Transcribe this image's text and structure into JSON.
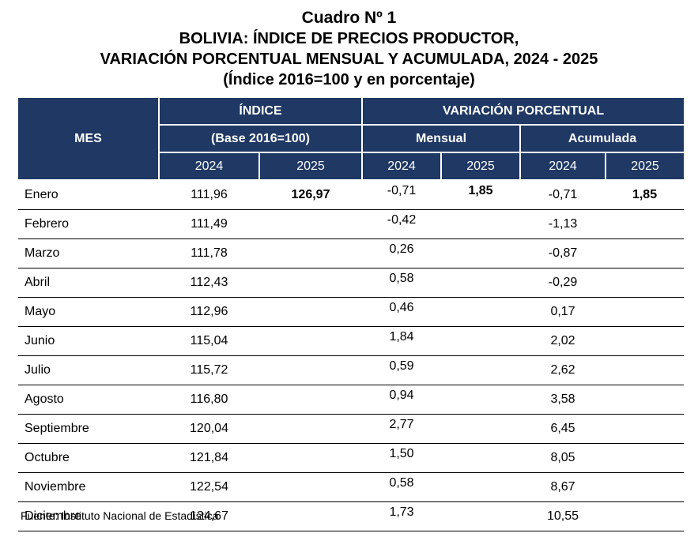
{
  "title": {
    "line1": "Cuadro Nº 1",
    "line2": "BOLIVIA: ÍNDICE DE PRECIOS PRODUCTOR,",
    "line3": "VARIACIÓN PORCENTUAL MENSUAL Y ACUMULADA, 2024 - 2025",
    "line4": "(Índice 2016=100 y en porcentaje)"
  },
  "header": {
    "mes": "MES",
    "indice": "ÍNDICE",
    "base": "(Base 2016=100)",
    "variacion": "VARIACIÓN PORCENTUAL",
    "mensual": "Mensual",
    "acumulada": "Acumulada",
    "y2024": "2024",
    "y2025": "2025"
  },
  "rows": [
    {
      "mes": "Enero",
      "idx2024": "111,96",
      "idx2025": "126,97",
      "men2024": "-0,71",
      "men2025": "1,85",
      "acu2024": "-0,71",
      "acu2025": "1,85"
    },
    {
      "mes": "Febrero",
      "idx2024": "111,49",
      "idx2025": "",
      "men2024": "-0,42",
      "men2025": "",
      "acu2024": "-1,13",
      "acu2025": ""
    },
    {
      "mes": "Marzo",
      "idx2024": "111,78",
      "idx2025": "",
      "men2024": "0,26",
      "men2025": "",
      "acu2024": "-0,87",
      "acu2025": ""
    },
    {
      "mes": "Abril",
      "idx2024": "112,43",
      "idx2025": "",
      "men2024": "0,58",
      "men2025": "",
      "acu2024": "-0,29",
      "acu2025": ""
    },
    {
      "mes": "Mayo",
      "idx2024": "112,96",
      "idx2025": "",
      "men2024": "0,46",
      "men2025": "",
      "acu2024": "0,17",
      "acu2025": ""
    },
    {
      "mes": "Junio",
      "idx2024": "115,04",
      "idx2025": "",
      "men2024": "1,84",
      "men2025": "",
      "acu2024": "2,02",
      "acu2025": ""
    },
    {
      "mes": "Julio",
      "idx2024": "115,72",
      "idx2025": "",
      "men2024": "0,59",
      "men2025": "",
      "acu2024": "2,62",
      "acu2025": ""
    },
    {
      "mes": "Agosto",
      "idx2024": "116,80",
      "idx2025": "",
      "men2024": "0,94",
      "men2025": "",
      "acu2024": "3,58",
      "acu2025": ""
    },
    {
      "mes": "Septiembre",
      "idx2024": "120,04",
      "idx2025": "",
      "men2024": "2,77",
      "men2025": "",
      "acu2024": "6,45",
      "acu2025": ""
    },
    {
      "mes": "Octubre",
      "idx2024": "121,84",
      "idx2025": "",
      "men2024": "1,50",
      "men2025": "",
      "acu2024": "8,05",
      "acu2025": ""
    },
    {
      "mes": "Noviembre",
      "idx2024": "122,54",
      "idx2025": "",
      "men2024": "0,58",
      "men2025": "",
      "acu2024": "8,67",
      "acu2025": ""
    },
    {
      "mes": "Diciembre",
      "idx2024": "124,67",
      "idx2025": "",
      "men2024": "1,73",
      "men2025": "",
      "acu2024": "10,55",
      "acu2025": ""
    }
  ],
  "source": "Fuente: Instituto Nacional de Estadística"
}
